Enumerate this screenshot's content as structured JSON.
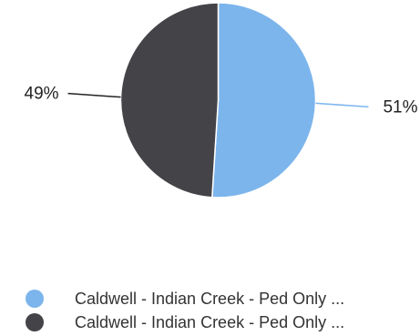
{
  "chart_data": {
    "type": "pie",
    "title": "",
    "slices": [
      {
        "label": "Caldwell - Indian Creek - Ped Only ...",
        "value": 51,
        "display": "51%",
        "color": "#7cb5ec"
      },
      {
        "label": "Caldwell - Indian Creek - Ped Only ...",
        "value": 49,
        "display": "49%",
        "color": "#434348"
      }
    ],
    "legend_position": "bottom"
  }
}
